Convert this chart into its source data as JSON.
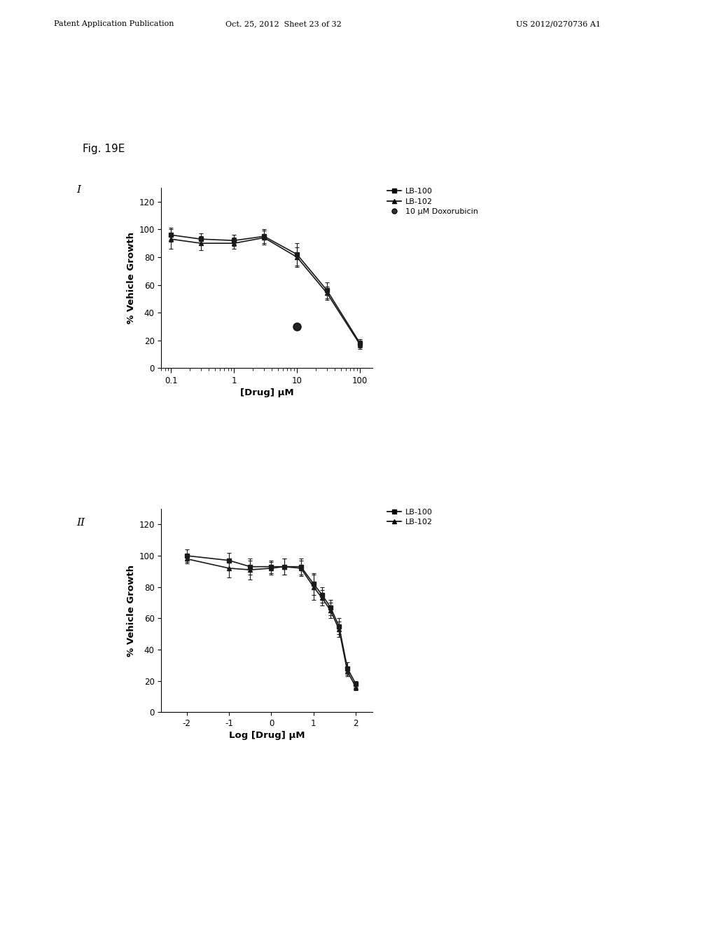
{
  "fig_label": "Fig. 19E",
  "panel_I_label": "I",
  "panel_II_label": "II",
  "header_left": "Patent Application Publication",
  "header_mid": "Oct. 25, 2012  Sheet 23 of 32",
  "header_right": "US 2012/0270736 A1",
  "panel1": {
    "xlabel": "[Drug] μM",
    "ylabel": "% Vehicle Growth",
    "xticks": [
      0.1,
      1,
      10,
      100
    ],
    "xticklabels": [
      "0.1",
      "1",
      "10",
      "100"
    ],
    "xlim_log": [
      -1.154,
      2.3
    ],
    "ylim": [
      0,
      130
    ],
    "yticks": [
      0,
      20,
      40,
      60,
      80,
      100,
      120
    ],
    "series": [
      {
        "label": "LB-100",
        "marker": "s",
        "color": "#1a1a1a",
        "x": [
          0.1,
          0.3,
          1.0,
          3.0,
          10.0,
          30.0,
          100.0
        ],
        "y": [
          96,
          93,
          92,
          95,
          82,
          56,
          18
        ],
        "yerr": [
          5,
          4,
          4,
          5,
          8,
          6,
          3
        ]
      },
      {
        "label": "LB-102",
        "marker": "^",
        "color": "#1a1a1a",
        "x": [
          0.1,
          0.3,
          1.0,
          3.0,
          10.0,
          30.0,
          100.0
        ],
        "y": [
          93,
          90,
          90,
          94,
          80,
          54,
          17
        ],
        "yerr": [
          7,
          5,
          4,
          5,
          7,
          5,
          3
        ]
      },
      {
        "label": "10 μM Doxorubicin",
        "marker": "o",
        "color": "#1a1a1a",
        "x": [
          10.0
        ],
        "y": [
          30
        ],
        "yerr": [
          0
        ],
        "single_point": true
      }
    ]
  },
  "panel2": {
    "xlabel": "Log [Drug] μM",
    "ylabel": "% Vehicle Growth",
    "xticks": [
      -2,
      -1,
      0,
      1,
      2
    ],
    "xticklabels": [
      "-2",
      "-1",
      "0",
      "1",
      "2"
    ],
    "xlim": [
      -2.6,
      2.4
    ],
    "ylim": [
      0,
      130
    ],
    "yticks": [
      0,
      20,
      40,
      60,
      80,
      100,
      120
    ],
    "series": [
      {
        "label": "LB-100",
        "marker": "s",
        "color": "#1a1a1a",
        "x": [
          -2.0,
          -1.0,
          -0.5,
          0.0,
          0.3,
          0.7,
          1.0,
          1.2,
          1.4,
          1.6,
          1.8,
          2.0
        ],
        "y": [
          100,
          97,
          93,
          93,
          93,
          93,
          82,
          75,
          67,
          55,
          28,
          18
        ],
        "yerr": [
          4,
          5,
          5,
          4,
          5,
          5,
          7,
          5,
          5,
          5,
          4,
          2
        ]
      },
      {
        "label": "LB-102",
        "marker": "^",
        "color": "#1a1a1a",
        "x": [
          -2.0,
          -1.0,
          -0.5,
          0.0,
          0.3,
          0.7,
          1.0,
          1.2,
          1.4,
          1.6,
          1.8,
          2.0
        ],
        "y": [
          98,
          92,
          91,
          92,
          93,
          92,
          80,
          73,
          65,
          53,
          26,
          16
        ],
        "yerr": [
          3,
          6,
          6,
          4,
          5,
          5,
          8,
          5,
          5,
          5,
          3,
          2
        ]
      }
    ]
  },
  "background_color": "#ffffff",
  "text_color": "#000000",
  "font_size": 8.5
}
